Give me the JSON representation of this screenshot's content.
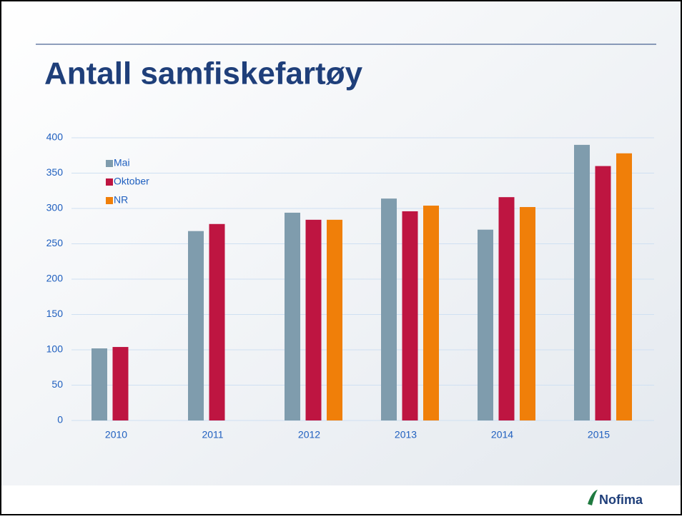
{
  "chart_data": {
    "type": "bar",
    "title": "Antall samfiskefartøy",
    "categories": [
      "2010",
      "2011",
      "2012",
      "2013",
      "2014",
      "2015"
    ],
    "series": [
      {
        "name": "Mai",
        "color": "#7f9cad",
        "values": [
          102,
          268,
          294,
          314,
          270,
          390
        ]
      },
      {
        "name": "Oktober",
        "color": "#be1541",
        "values": [
          104,
          278,
          284,
          296,
          316,
          360
        ]
      },
      {
        "name": "NR",
        "color": "#f07f09",
        "values": [
          null,
          null,
          284,
          304,
          302,
          378
        ]
      }
    ],
    "ylim": [
      0,
      400
    ],
    "yticks": [
      0,
      50,
      100,
      150,
      200,
      250,
      300,
      350,
      400
    ],
    "grid": true,
    "legend": "top-left"
  },
  "footer": {
    "logo": "Nofima"
  }
}
